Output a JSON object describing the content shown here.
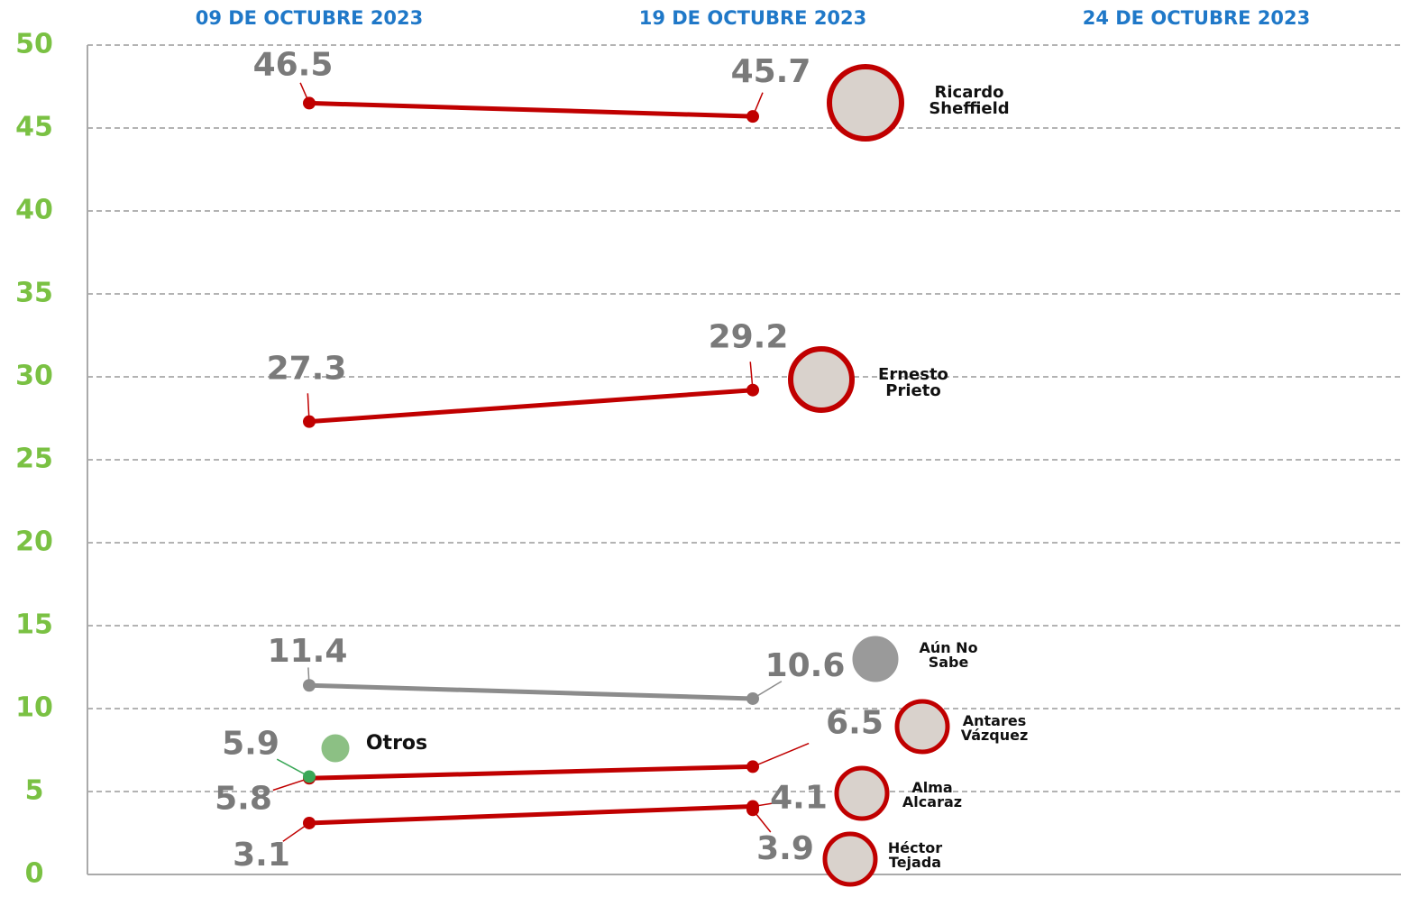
{
  "chart_data": {
    "type": "line",
    "categories": [
      "09 DE OCTUBRE 2023",
      "19 DE OCTUBRE 2023",
      "24 DE OCTUBRE 2023"
    ],
    "ylim": [
      0,
      50
    ],
    "yticks": [
      0,
      5,
      10,
      15,
      20,
      25,
      30,
      35,
      40,
      45,
      50
    ],
    "grid": true,
    "series": [
      {
        "name": "Ricardo Sheffield",
        "color": "#c00000",
        "values": [
          46.5,
          45.7,
          null
        ]
      },
      {
        "name": "Ernesto Prieto",
        "color": "#c00000",
        "values": [
          27.3,
          29.2,
          null
        ]
      },
      {
        "name": "Aún No Sabe",
        "color": "#8c8c8c",
        "values": [
          11.4,
          10.6,
          null
        ]
      },
      {
        "name": "Antares Vázquez",
        "color": "#c00000",
        "values": [
          5.8,
          6.5,
          null
        ]
      },
      {
        "name": "Alma Alcaraz",
        "color": "#c00000",
        "values": [
          3.1,
          4.1,
          null
        ]
      },
      {
        "name": "Héctor Tejada",
        "color": "#c00000",
        "values": [
          null,
          3.9,
          null
        ]
      },
      {
        "name": "Otros",
        "color": "#3aa757",
        "values": [
          5.9,
          null,
          null
        ]
      }
    ]
  }
}
